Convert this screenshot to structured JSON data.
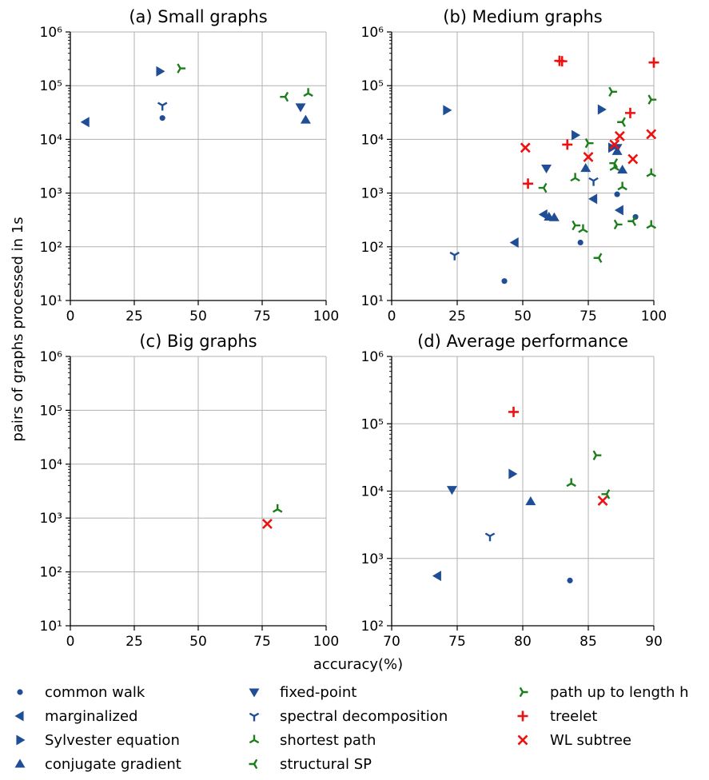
{
  "figure": {
    "ylabel": "pairs of graphs processed in 1s",
    "xlabel": "accuracy(%)"
  },
  "colors": {
    "blue": "#1f4e96",
    "green": "#1a7f1a",
    "red": "#f01010",
    "grid": "#b0b0b0"
  },
  "legend": [
    {
      "key": "common_walk",
      "label": "common walk",
      "marker": "dot",
      "color": "blue"
    },
    {
      "key": "marginalized",
      "label": "marginalized",
      "marker": "tri-left",
      "color": "blue"
    },
    {
      "key": "sylvester",
      "label": "Sylvester equation",
      "marker": "tri-right",
      "color": "blue"
    },
    {
      "key": "conjugate",
      "label": "conjugate gradient",
      "marker": "tri-up",
      "color": "blue"
    },
    {
      "key": "fixed_point",
      "label": "fixed-point",
      "marker": "tri-down",
      "color": "blue"
    },
    {
      "key": "spectral",
      "label": "spectral decomposition",
      "marker": "y-down",
      "color": "blue"
    },
    {
      "key": "shortest_path",
      "label": "shortest path",
      "marker": "y-up",
      "color": "green"
    },
    {
      "key": "structural_sp",
      "label": "structural SP",
      "marker": "y-left",
      "color": "green"
    },
    {
      "key": "path_h",
      "label": "path up to length h",
      "marker": "y-right",
      "color": "green"
    },
    {
      "key": "treelet",
      "label": "treelet",
      "marker": "plus",
      "color": "red"
    },
    {
      "key": "wl",
      "label": "WL subtree",
      "marker": "x",
      "color": "red"
    }
  ],
  "chart_data": [
    {
      "type": "scatter",
      "title": "(a) Small graphs",
      "xlim": [
        0,
        100
      ],
      "xticks": [
        "0",
        "25",
        "50",
        "75",
        "100"
      ],
      "ylim_exp": [
        1,
        6
      ],
      "yscale": "log",
      "points": [
        {
          "s": "marginalized",
          "x": 6,
          "y": 21000
        },
        {
          "s": "common_walk",
          "x": 36,
          "y": 25000
        },
        {
          "s": "spectral",
          "x": 36,
          "y": 43000
        },
        {
          "s": "sylvester",
          "x": 35,
          "y": 185000
        },
        {
          "s": "path_h",
          "x": 43,
          "y": 210000
        },
        {
          "s": "structural_sp",
          "x": 84,
          "y": 62000
        },
        {
          "s": "shortest_path",
          "x": 93,
          "y": 72000
        },
        {
          "s": "fixed_point",
          "x": 90,
          "y": 40000
        },
        {
          "s": "conjugate",
          "x": 92,
          "y": 23000
        }
      ]
    },
    {
      "type": "scatter",
      "title": "(b) Medium graphs",
      "xlim": [
        0,
        100
      ],
      "xticks": [
        "0",
        "25",
        "50",
        "75",
        "100"
      ],
      "ylim_exp": [
        1,
        6
      ],
      "yscale": "log",
      "points": [
        {
          "s": "common_walk",
          "x": 43,
          "y": 23
        },
        {
          "s": "common_walk",
          "x": 72,
          "y": 120
        },
        {
          "s": "common_walk",
          "x": 86,
          "y": 950
        },
        {
          "s": "common_walk",
          "x": 93,
          "y": 360
        },
        {
          "s": "spectral",
          "x": 24,
          "y": 70
        },
        {
          "s": "spectral",
          "x": 77,
          "y": 1700
        },
        {
          "s": "marginalized",
          "x": 47,
          "y": 120
        },
        {
          "s": "marginalized",
          "x": 58,
          "y": 400
        },
        {
          "s": "marginalized",
          "x": 77,
          "y": 780
        },
        {
          "s": "marginalized",
          "x": 87,
          "y": 480
        },
        {
          "s": "conjugate",
          "x": 60,
          "y": 360
        },
        {
          "s": "conjugate",
          "x": 62,
          "y": 350
        },
        {
          "s": "conjugate",
          "x": 74,
          "y": 2900
        },
        {
          "s": "conjugate",
          "x": 86,
          "y": 6000
        },
        {
          "s": "conjugate",
          "x": 88,
          "y": 2700
        },
        {
          "s": "fixed_point",
          "x": 59,
          "y": 2900
        },
        {
          "s": "fixed_point",
          "x": 86,
          "y": 7000
        },
        {
          "s": "sylvester",
          "x": 21,
          "y": 35000
        },
        {
          "s": "sylvester",
          "x": 70,
          "y": 12000
        },
        {
          "s": "sylvester",
          "x": 80,
          "y": 36000
        },
        {
          "s": "sylvester",
          "x": 84,
          "y": 7000
        },
        {
          "s": "structural_sp",
          "x": 58,
          "y": 1250
        },
        {
          "s": "structural_sp",
          "x": 79,
          "y": 62
        },
        {
          "s": "structural_sp",
          "x": 85,
          "y": 3600
        },
        {
          "s": "structural_sp",
          "x": 88,
          "y": 21000
        },
        {
          "s": "structural_sp",
          "x": 92,
          "y": 300
        },
        {
          "s": "path_h",
          "x": 70,
          "y": 250
        },
        {
          "s": "path_h",
          "x": 75,
          "y": 8500
        },
        {
          "s": "path_h",
          "x": 84,
          "y": 77000
        },
        {
          "s": "path_h",
          "x": 86,
          "y": 260
        },
        {
          "s": "path_h",
          "x": 99,
          "y": 55000
        },
        {
          "s": "shortest_path",
          "x": 70,
          "y": 1900
        },
        {
          "s": "shortest_path",
          "x": 73,
          "y": 210
        },
        {
          "s": "shortest_path",
          "x": 85,
          "y": 3000
        },
        {
          "s": "shortest_path",
          "x": 88,
          "y": 1300
        },
        {
          "s": "shortest_path",
          "x": 99,
          "y": 2300
        },
        {
          "s": "shortest_path",
          "x": 99,
          "y": 250
        },
        {
          "s": "treelet",
          "x": 52,
          "y": 1500
        },
        {
          "s": "treelet",
          "x": 64,
          "y": 290000
        },
        {
          "s": "treelet",
          "x": 65,
          "y": 285000
        },
        {
          "s": "treelet",
          "x": 67,
          "y": 8000
        },
        {
          "s": "treelet",
          "x": 91,
          "y": 31000
        },
        {
          "s": "treelet",
          "x": 100,
          "y": 270000
        },
        {
          "s": "wl",
          "x": 51,
          "y": 7000
        },
        {
          "s": "wl",
          "x": 75,
          "y": 4700
        },
        {
          "s": "wl",
          "x": 85,
          "y": 8000
        },
        {
          "s": "wl",
          "x": 87,
          "y": 11500
        },
        {
          "s": "wl",
          "x": 92,
          "y": 4300
        },
        {
          "s": "wl",
          "x": 99,
          "y": 12500
        }
      ]
    },
    {
      "type": "scatter",
      "title": "(c) Big graphs",
      "xlim": [
        0,
        100
      ],
      "xticks": [
        "0",
        "25",
        "50",
        "75",
        "100"
      ],
      "ylim_exp": [
        1,
        6
      ],
      "yscale": "log",
      "points": [
        {
          "s": "shortest_path",
          "x": 81,
          "y": 1450
        },
        {
          "s": "wl",
          "x": 77,
          "y": 780
        }
      ]
    },
    {
      "type": "scatter",
      "title": "(d) Average performance",
      "xlim": [
        70,
        90
      ],
      "xticks": [
        "70",
        "75",
        "80",
        "85",
        "90"
      ],
      "ylim_exp": [
        2,
        6
      ],
      "yscale": "log",
      "points": [
        {
          "s": "marginalized",
          "x": 73.5,
          "y": 550
        },
        {
          "s": "fixed_point",
          "x": 74.6,
          "y": 10500
        },
        {
          "s": "spectral",
          "x": 77.5,
          "y": 2150
        },
        {
          "s": "sylvester",
          "x": 79.2,
          "y": 18000
        },
        {
          "s": "treelet",
          "x": 79.3,
          "y": 150000
        },
        {
          "s": "conjugate",
          "x": 80.6,
          "y": 7000
        },
        {
          "s": "common_walk",
          "x": 83.6,
          "y": 470
        },
        {
          "s": "shortest_path",
          "x": 83.7,
          "y": 13000
        },
        {
          "s": "path_h",
          "x": 85.6,
          "y": 34000
        },
        {
          "s": "wl",
          "x": 86.1,
          "y": 7200
        },
        {
          "s": "structural_sp",
          "x": 86.4,
          "y": 9000
        }
      ]
    }
  ]
}
